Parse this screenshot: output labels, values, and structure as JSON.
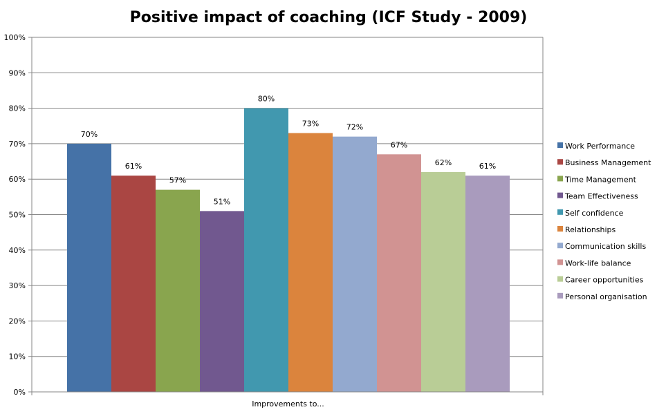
{
  "chart_data": {
    "type": "bar",
    "title": "Positive impact of coaching (ICF Study - 2009)",
    "xlabel": "",
    "ylabel": "",
    "categories": [
      "Improvements to..."
    ],
    "ylim": [
      0,
      100
    ],
    "y_ticks": [
      "0%",
      "10%",
      "20%",
      "30%",
      "40%",
      "50%",
      "60%",
      "70%",
      "80%",
      "90%",
      "100%"
    ],
    "unit": "%",
    "grid": true,
    "legend_position": "right",
    "series": [
      {
        "name": "Work Performance",
        "values": [
          70
        ],
        "color": "#4572A7"
      },
      {
        "name": "Business Management",
        "values": [
          61
        ],
        "color": "#AA4643"
      },
      {
        "name": "Time Management",
        "values": [
          57
        ],
        "color": "#89A54E"
      },
      {
        "name": "Team Effectiveness",
        "values": [
          51
        ],
        "color": "#71588F"
      },
      {
        "name": "Self confidence",
        "values": [
          80
        ],
        "color": "#4198AF"
      },
      {
        "name": "Relationships",
        "values": [
          73
        ],
        "color": "#DB843D"
      },
      {
        "name": "Communication skills",
        "values": [
          72
        ],
        "color": "#93A9CF"
      },
      {
        "name": "Work-life balance",
        "values": [
          67
        ],
        "color": "#D19392"
      },
      {
        "name": "Career opportunities",
        "values": [
          62
        ],
        "color": "#B9CD96"
      },
      {
        "name": "Personal organisation",
        "values": [
          61
        ],
        "color": "#A99BBD"
      }
    ]
  }
}
